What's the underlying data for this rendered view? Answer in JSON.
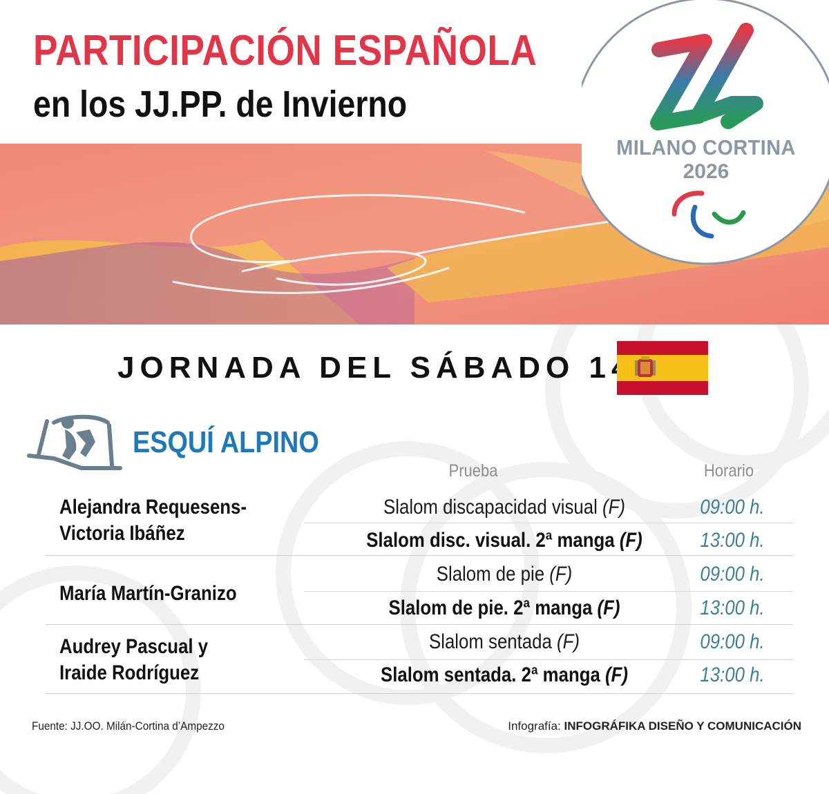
{
  "header": {
    "title": "PARTICIPACIÓN ESPAÑOLA",
    "subtitle": "en los JJ.PP. de Invierno"
  },
  "logo": {
    "city": "MILANO CORTINA",
    "year": "2026",
    "emblem_icon": "milano-cortina-26-emblem",
    "symbol_icon": "paralympic-agitos-icon"
  },
  "day": {
    "title": "JORNADA DEL SÁBADO 14",
    "flag_icon": "spain-flag-icon"
  },
  "sport": {
    "name": "ESQUÍ ALPINO",
    "icon": "sit-ski-icon"
  },
  "table": {
    "col_event": "Prueba",
    "col_time": "Horario",
    "groups": [
      {
        "athletes": [
          "Alejandra Requesens-",
          "Victoria Ibáñez"
        ],
        "events": [
          {
            "name": "Slalom discapacidad visual",
            "mark": "(F)",
            "time": "09:00 h.",
            "bold": false
          },
          {
            "name": "Slalom disc. visual. 2ª manga",
            "mark": "(F)",
            "time": "13:00 h.",
            "bold": true
          }
        ]
      },
      {
        "athletes": [
          "María Martín-Granizo"
        ],
        "events": [
          {
            "name": "Slalom de pie",
            "mark": "(F)",
            "time": "09:00 h.",
            "bold": false
          },
          {
            "name": "Slalom de pie. 2ª manga",
            "mark": "(F)",
            "time": "13:00 h.",
            "bold": true
          }
        ]
      },
      {
        "athletes": [
          "Audrey Pascual y",
          "Iraide Rodríguez"
        ],
        "events": [
          {
            "name": "Slalom sentada",
            "mark": "(F)",
            "time": "09:00 h.",
            "bold": false
          },
          {
            "name": "Slalom sentada. 2ª manga",
            "mark": "(F)",
            "time": "13:00 h.",
            "bold": true
          }
        ]
      }
    ]
  },
  "footer": {
    "source": "Fuente: JJ.OO. Milán-Cortina d’Ampezzo",
    "credit_label": "Infografía: ",
    "credit_name": "INFOGRÁFIKA DISEÑO Y COMUNICACIÓN"
  },
  "colors": {
    "title_red": "#e1354a",
    "sport_blue": "#1f78b8",
    "time_teal": "#3f7f95",
    "banner_coral": "#f28a78"
  }
}
